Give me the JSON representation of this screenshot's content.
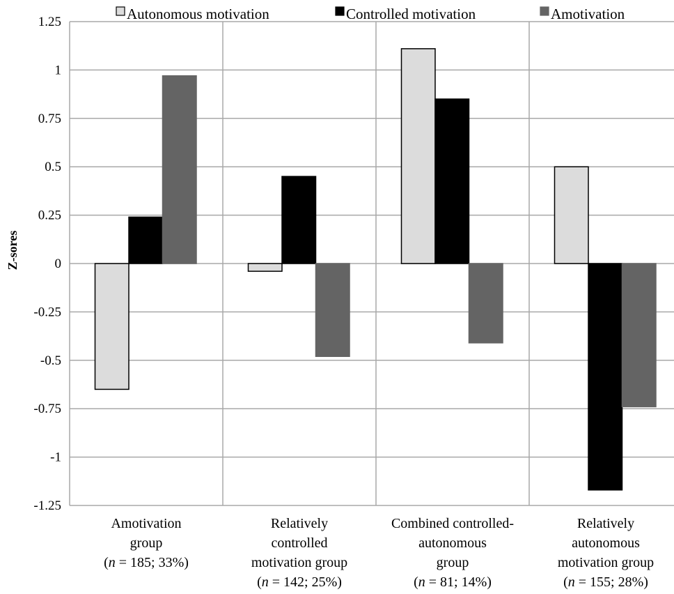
{
  "chart_data": {
    "type": "bar",
    "ylabel": "Z-sores",
    "ylim": [
      -1.25,
      1.25
    ],
    "yticks": [
      "1.25",
      "1",
      "0.75",
      "0.5",
      "0.25",
      "0",
      "-0.25",
      "-0.5",
      "-0.75",
      "-1",
      "-1.25"
    ],
    "ytick_values": [
      1.25,
      1,
      0.75,
      0.5,
      0.25,
      0,
      -0.25,
      -0.5,
      -0.75,
      -1,
      -1.25
    ],
    "grid": true,
    "legend_position": "top",
    "categories": [
      {
        "lines": [
          {
            "text": "Amotivation"
          },
          {
            "text": "group"
          },
          {
            "prefix": "(",
            "italic": "n",
            "suffix": " = 185; 33%)"
          }
        ]
      },
      {
        "lines": [
          {
            "text": "Relatively"
          },
          {
            "text": "controlled"
          },
          {
            "text": "motivation group"
          },
          {
            "prefix": "(",
            "italic": "n",
            "suffix": " = 142; 25%)"
          }
        ]
      },
      {
        "lines": [
          {
            "text": "Combined controlled-"
          },
          {
            "text": "autonomous"
          },
          {
            "text": "group"
          },
          {
            "prefix": "(",
            "italic": "n",
            "suffix": " = 81; 14%)"
          }
        ]
      },
      {
        "lines": [
          {
            "text": "Relatively"
          },
          {
            "text": "autonomous"
          },
          {
            "text": "motivation group"
          },
          {
            "prefix": "(",
            "italic": "n",
            "suffix": " = 155; 28%)"
          }
        ]
      }
    ],
    "series": [
      {
        "name": "Autonomous motivation",
        "color": "#dcdcdc",
        "stroke": "#000000",
        "values": [
          -0.65,
          -0.04,
          1.11,
          0.5
        ]
      },
      {
        "name": "Controlled motivation",
        "color": "#000000",
        "stroke": "#000000",
        "values": [
          0.24,
          0.45,
          0.85,
          -1.17
        ]
      },
      {
        "name": "Amotivation",
        "color": "#646464",
        "stroke": "#646464",
        "values": [
          0.97,
          -0.48,
          -0.41,
          -0.74
        ]
      }
    ]
  }
}
